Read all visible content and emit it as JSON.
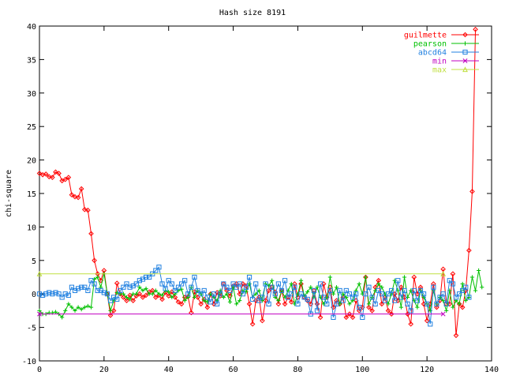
{
  "chart_data": {
    "type": "line",
    "title": "Hash size 8191",
    "xlabel": "",
    "ylabel": "chi-square",
    "xlim": [
      0,
      140
    ],
    "ylim": [
      -10,
      40
    ],
    "xticks": [
      0,
      20,
      40,
      60,
      80,
      100,
      120,
      140
    ],
    "yticks": [
      -10,
      -5,
      0,
      5,
      10,
      15,
      20,
      25,
      30,
      35,
      40
    ],
    "grid": false,
    "legend_position": "top-right",
    "series": [
      {
        "name": "guilmette",
        "color": "#ff0000",
        "marker": "diamond",
        "values": [
          18.0,
          17.8,
          17.9,
          17.5,
          17.4,
          18.2,
          18.0,
          16.9,
          17.1,
          17.4,
          14.8,
          14.5,
          14.4,
          15.7,
          12.6,
          12.5,
          9.0,
          5.0,
          3.0,
          2.0,
          3.5,
          0.0,
          -3.2,
          -2.5,
          1.6,
          0.0,
          -0.5,
          -1.0,
          -0.2,
          -1.0,
          -0.3,
          0.0,
          -0.5,
          -0.2,
          0.3,
          0.5,
          -0.5,
          -0.2,
          -0.8,
          0.2,
          -0.3,
          0.3,
          -0.5,
          -1.2,
          -1.5,
          -0.5,
          -0.4,
          -2.8,
          0.3,
          -0.5,
          -1.5,
          -0.8,
          -2.0,
          0.0,
          -1.5,
          0.2,
          -0.3,
          1.5,
          0.5,
          -0.3,
          1.2,
          1.5,
          0.0,
          1.5,
          1.2,
          -1.5,
          -4.5,
          -1.0,
          -0.5,
          -4.0,
          -1.0,
          0.5,
          1.0,
          0.3,
          -1.5,
          0.5,
          -1.5,
          -0.5,
          -1.2,
          1.5,
          -0.5,
          1.5,
          -0.5,
          -1.0,
          -1.5,
          0.5,
          -1.5,
          -3.5,
          1.5,
          -0.5,
          1.0,
          -2.0,
          -1.0,
          -1.5,
          -0.5,
          -3.5,
          -3.0,
          -3.5,
          -1.0,
          -2.5,
          -2.0,
          2.5,
          -2.0,
          -2.5,
          1.0,
          2.0,
          -1.5,
          -0.5,
          -2.5,
          -3.0,
          0.0,
          -1.0,
          1.0,
          -0.5,
          -3.0,
          -4.5,
          2.5,
          0.0,
          1.0,
          -1.5,
          -4.0,
          -1.5,
          1.5,
          -2.0,
          -1.0,
          3.7,
          -1.5,
          -1.5,
          3.0,
          -6.2,
          -1.5,
          -2.0,
          0.5,
          6.5,
          15.3,
          39.5
        ]
      },
      {
        "name": "pearson",
        "color": "#00c000",
        "marker": "plus",
        "values": [
          -2.5,
          -3.0,
          -3.0,
          -2.8,
          -2.8,
          -2.7,
          -3.0,
          -3.5,
          -2.5,
          -1.5,
          -2.0,
          -2.5,
          -2.0,
          -2.3,
          -2.0,
          -1.8,
          -2.0,
          2.2,
          2.5,
          1.0,
          3.0,
          0.0,
          -2.5,
          -1.0,
          0.2,
          0.0,
          0.0,
          -0.5,
          -0.8,
          0.0,
          0.0,
          1.0,
          0.5,
          0.8,
          0.0,
          0.0,
          0.5,
          0.0,
          -0.2,
          0.5,
          0.3,
          -0.5,
          0.0,
          0.5,
          0.7,
          -1.0,
          -0.5,
          1.0,
          -0.5,
          0.5,
          0.0,
          -1.0,
          -1.2,
          0.0,
          -0.5,
          -1.0,
          0.5,
          -0.5,
          0.0,
          -1.2,
          1.0,
          -1.5,
          -1.0,
          0.5,
          0.3,
          1.5,
          -0.5,
          0.0,
          0.5,
          -1.0,
          1.5,
          1.2,
          2.0,
          -0.5,
          -1.0,
          0.5,
          -0.5,
          0.5,
          1.5,
          -1.5,
          0.0,
          2.0,
          -0.3,
          0.3,
          1.0,
          -0.5,
          1.0,
          -0.5,
          -1.5,
          -0.5,
          2.5,
          0.0,
          1.0,
          -1.5,
          0.0,
          -0.5,
          -1.5,
          -1.0,
          0.5,
          1.5,
          0.0,
          2.5,
          -1.5,
          -0.5,
          0.5,
          1.5,
          1.0,
          0.0,
          -1.5,
          0.0,
          2.0,
          0.5,
          -2.0,
          2.5,
          -0.5,
          0.5,
          -1.0,
          -2.0,
          0.5,
          -0.5,
          -1.5,
          -2.5,
          0.5,
          -1.5,
          -0.5,
          -1.0,
          -2.5,
          0.5,
          -2.0,
          -1.0,
          -1.5,
          1.5,
          -1.0,
          -0.5,
          2.5,
          0.5,
          3.5,
          1.0
        ]
      },
      {
        "name": "abcd64",
        "color": "#2080e0",
        "marker": "square",
        "values": [
          0.0,
          -0.2,
          0.0,
          0.2,
          0.0,
          0.2,
          0.0,
          -0.5,
          0.0,
          -0.2,
          1.0,
          0.5,
          0.8,
          1.0,
          1.0,
          0.5,
          2.0,
          1.5,
          0.5,
          0.5,
          0.2,
          0.0,
          -1.0,
          -0.5,
          -0.8,
          0.5,
          1.0,
          1.5,
          1.0,
          1.2,
          1.5,
          2.0,
          2.2,
          2.5,
          2.5,
          3.0,
          3.5,
          4.0,
          1.5,
          0.8,
          2.0,
          1.5,
          0.5,
          1.0,
          1.5,
          2.0,
          0.0,
          1.0,
          2.5,
          0.5,
          0.0,
          0.5,
          -0.5,
          -1.2,
          0.0,
          -1.5,
          0.0,
          1.5,
          1.0,
          0.5,
          1.5,
          1.0,
          1.5,
          0.0,
          1.0,
          2.5,
          -0.8,
          1.5,
          -1.0,
          -0.5,
          1.5,
          -1.5,
          1.0,
          0.0,
          1.5,
          0.5,
          2.0,
          -0.5,
          0.0,
          1.0,
          -1.5,
          0.0,
          -0.5,
          -0.8,
          -3.0,
          0.5,
          -2.5,
          1.5,
          -0.5,
          -1.5,
          0.5,
          -3.5,
          -1.5,
          0.5,
          -1.0,
          0.5,
          0.0,
          -0.5,
          0.0,
          -2.0,
          -3.5,
          0.0,
          1.0,
          -0.5,
          -1.5,
          0.5,
          0.0,
          -1.0,
          0.0,
          0.5,
          -1.0,
          2.0,
          -0.5,
          0.5,
          -1.5,
          -2.5,
          0.5,
          -1.0,
          0.5,
          0.0,
          -1.5,
          -4.5,
          1.0,
          -1.5,
          -0.5,
          0.0,
          -1.5,
          2.0,
          1.5,
          -0.5,
          0.0,
          0.5,
          1.0,
          -0.5
        ]
      },
      {
        "name": "min",
        "color": "#c000c0",
        "marker": "cross",
        "x": [
          0,
          125
        ],
        "values": [
          -3.0,
          -3.0
        ]
      },
      {
        "name": "max",
        "color": "#c0e040",
        "marker": "triangle",
        "x": [
          0,
          125
        ],
        "values": [
          3.0,
          3.0
        ]
      }
    ]
  }
}
